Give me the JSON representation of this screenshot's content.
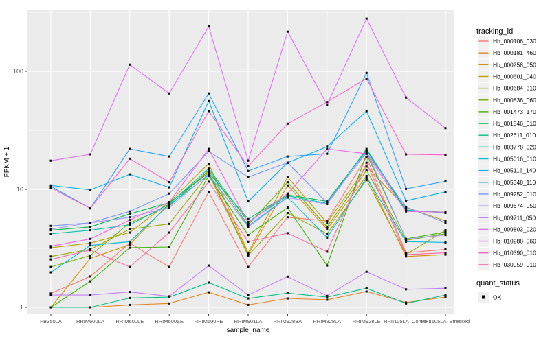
{
  "chart_data": {
    "type": "line",
    "title": "",
    "xlabel": "sample_name",
    "ylabel": "FPKM + 1",
    "y_scale": "log10",
    "y_ticks": [
      1,
      10,
      100
    ],
    "y_tick_labels": [
      "1",
      "10",
      "100"
    ],
    "y_minor_ticks": [
      3.162,
      31.62,
      316.2
    ],
    "ylim": [
      1,
      330
    ],
    "grid": "on",
    "panel_background": "#EBEBEB",
    "gridline_color": "#FFFFFF",
    "marker": {
      "shape": "square",
      "color": "#000000",
      "legend_label": "OK"
    },
    "legend_position": "right",
    "legend_titles": {
      "series": "tracking_id",
      "marker": "quant_status"
    },
    "categories": [
      "PB350LA",
      "RRIM600LA",
      "RRIM600LE",
      "RRIM600SE",
      "RRIM600PE",
      "RRIM901LA",
      "RRIM928BA",
      "RRIM928LA",
      "RRIM928LE",
      "RRII105LA_Control",
      "RRII105LA_Stressed"
    ],
    "series": [
      {
        "name": "Hb_000106_030",
        "color": "#F8766D",
        "values": [
          1.31,
          1.83,
          3.5,
          2.2,
          9.5,
          2.2,
          5.8,
          5.4,
          18.7,
          2.9,
          3.1
        ]
      },
      {
        "name": "Hb_000181_460",
        "color": "#E88526",
        "values": [
          1.0,
          1.0,
          1.05,
          1.08,
          1.34,
          1.05,
          1.19,
          1.16,
          1.36,
          1.1,
          1.22
        ]
      },
      {
        "name": "Hb_000258_050",
        "color": "#D39200",
        "values": [
          1.0,
          2.6,
          3.4,
          7.6,
          14.2,
          2.8,
          10.8,
          4.6,
          13.0,
          2.7,
          2.8
        ]
      },
      {
        "name": "Hb_000601_040",
        "color": "#BE9C00",
        "values": [
          3.2,
          3.5,
          4.3,
          7.8,
          16.5,
          2.9,
          12.7,
          5.2,
          15.6,
          7.0,
          5.4
        ]
      },
      {
        "name": "Hb_000684_310",
        "color": "#9CA700",
        "values": [
          2.7,
          3.1,
          4.6,
          5.1,
          13.5,
          2.75,
          6.3,
          4.2,
          12.0,
          2.8,
          4.5
        ]
      },
      {
        "name": "Hb_000836_060",
        "color": "#72B000",
        "values": [
          2.2,
          2.75,
          5.2,
          7.2,
          14.5,
          5.0,
          11.5,
          4.8,
          14.5,
          3.7,
          4.2
        ]
      },
      {
        "name": "Hb_001473_170",
        "color": "#39B600",
        "values": [
          1.0,
          1.66,
          3.2,
          3.25,
          13.0,
          4.1,
          7.0,
          2.26,
          20.0,
          3.8,
          4.35
        ]
      },
      {
        "name": "Hb_001546_010",
        "color": "#00BC51",
        "values": [
          4.5,
          4.8,
          6.2,
          7.7,
          13.8,
          5.6,
          9.0,
          7.9,
          21.5,
          6.6,
          6.4
        ]
      },
      {
        "name": "Hb_002611_010",
        "color": "#00C087",
        "values": [
          1.0,
          1.0,
          1.2,
          1.22,
          1.62,
          1.19,
          1.32,
          1.22,
          1.45,
          1.08,
          1.27
        ]
      },
      {
        "name": "Hb_003778_020",
        "color": "#00C0B2",
        "values": [
          4.2,
          4.5,
          5.0,
          7.5,
          15.0,
          5.3,
          8.8,
          7.6,
          22.0,
          6.7,
          6.3
        ]
      },
      {
        "name": "Hb_005016_010",
        "color": "#00BCD8",
        "values": [
          1.98,
          3.35,
          3.6,
          7.4,
          13.2,
          4.9,
          8.6,
          3.9,
          12.5,
          3.6,
          3.55
        ]
      },
      {
        "name": "Hb_005116_140",
        "color": "#00B3F2",
        "values": [
          10.8,
          9.9,
          13.4,
          10.4,
          56,
          7.9,
          16.8,
          23,
          46,
          8.0,
          9.5
        ]
      },
      {
        "name": "Hb_005348_110",
        "color": "#29A3FF",
        "values": [
          10.6,
          6.9,
          22,
          19,
          65,
          14.3,
          19,
          20,
          97,
          10.1,
          11.7
        ]
      },
      {
        "name": "Hb_009252_010",
        "color": "#7997FF",
        "values": [
          4.9,
          5.2,
          6.5,
          9.2,
          21,
          12.7,
          16.8,
          7.7,
          20.5,
          7.1,
          5.2
        ]
      },
      {
        "name": "Hb_009674_050",
        "color": "#A69AFF",
        "values": [
          4.6,
          5.2,
          5.8,
          7.0,
          13.5,
          4.8,
          8.5,
          7.5,
          21.0,
          3.8,
          4.1
        ]
      },
      {
        "name": "Hb_009711_050",
        "color": "#C77CFF",
        "values": [
          1.27,
          1.27,
          1.35,
          1.24,
          2.26,
          1.27,
          1.82,
          1.25,
          2.0,
          1.42,
          1.45
        ]
      },
      {
        "name": "Hb_009803_020",
        "color": "#E26EF7",
        "values": [
          17.5,
          19.8,
          114,
          65,
          240,
          17.5,
          217,
          52,
          280,
          60,
          33
        ]
      },
      {
        "name": "Hb_010288_060",
        "color": "#F265E5",
        "values": [
          3.3,
          3.8,
          5.5,
          7.8,
          22,
          5.2,
          9.2,
          22,
          20,
          6.5,
          6.4
        ]
      },
      {
        "name": "Hb_010390_010",
        "color": "#FC61CD",
        "values": [
          10.3,
          6.9,
          18.2,
          11.5,
          46,
          15.7,
          36,
          55,
          87,
          19.8,
          19.6
        ]
      },
      {
        "name": "Hb_030959_010",
        "color": "#FF67A9",
        "values": [
          2.55,
          3.05,
          2.2,
          4.3,
          11.6,
          3.6,
          4.25,
          2.96,
          16.8,
          2.8,
          2.9
        ]
      }
    ]
  },
  "axes": {
    "x_title": "sample_name",
    "y_title": "FPKM + 1"
  },
  "legend": {
    "tracking_title": "tracking_id",
    "quant_title": "quant_status",
    "quant_ok_label": "OK"
  }
}
